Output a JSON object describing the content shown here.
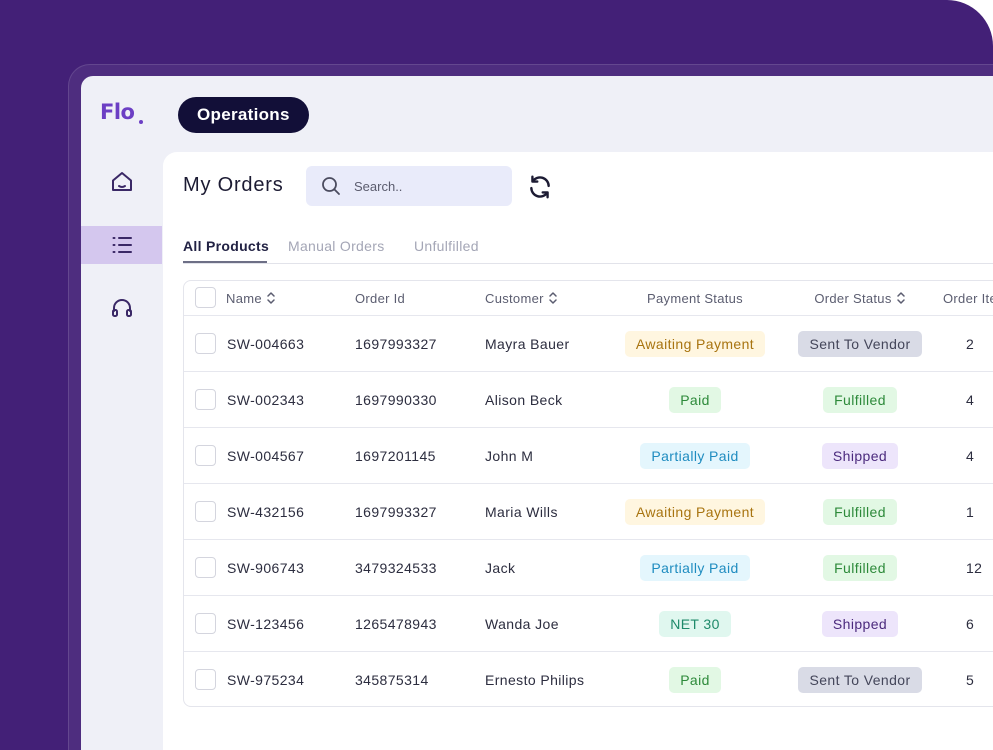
{
  "app": {
    "logo": "Flo"
  },
  "header": {
    "section_label": "Operations"
  },
  "sidebar": {
    "items": [
      {
        "name": "home",
        "icon": "home-icon",
        "active": false
      },
      {
        "name": "orders",
        "icon": "list-icon",
        "active": true
      },
      {
        "name": "support",
        "icon": "headset-icon",
        "active": false
      }
    ]
  },
  "page": {
    "title": "My Orders",
    "search": {
      "placeholder": "Search.."
    }
  },
  "tabs": [
    {
      "label": "All Products",
      "active": true
    },
    {
      "label": "Manual Orders",
      "active": false
    },
    {
      "label": "Unfulfilled",
      "active": false
    }
  ],
  "table": {
    "columns": [
      "Name",
      "Order Id",
      "Customer",
      "Payment Status",
      "Order Status",
      "Order Ite"
    ],
    "rows": [
      {
        "name": "SW-004663",
        "order_id": "1697993327",
        "customer": "Mayra Bauer",
        "payment": "Awaiting Payment",
        "status": "Sent To Vendor",
        "items": "2"
      },
      {
        "name": "SW-002343",
        "order_id": "1697990330",
        "customer": "Alison Beck",
        "payment": "Paid",
        "status": "Fulfilled",
        "items": "4"
      },
      {
        "name": "SW-004567",
        "order_id": "1697201145",
        "customer": "John M",
        "payment": "Partially Paid",
        "status": "Shipped",
        "items": "4"
      },
      {
        "name": "SW-432156",
        "order_id": "1697993327",
        "customer": "Maria Wills",
        "payment": "Awaiting Payment",
        "status": "Fulfilled",
        "items": "1"
      },
      {
        "name": "SW-906743",
        "order_id": "3479324533",
        "customer": "Jack",
        "payment": "Partially Paid",
        "status": "Fulfilled",
        "items": "12"
      },
      {
        "name": "SW-123456",
        "order_id": "1265478943",
        "customer": "Wanda Joe",
        "payment": "NET 30",
        "status": "Shipped",
        "items": "6"
      },
      {
        "name": "SW-975234",
        "order_id": "345875314",
        "customer": "Ernesto Philips",
        "payment": "Paid",
        "status": "Sent To Vendor",
        "items": "5"
      }
    ]
  },
  "colors": {
    "background": "#432077",
    "accent": "#6c3fc4",
    "active_nav": "#d4c7ee",
    "pill": "#120f38"
  }
}
